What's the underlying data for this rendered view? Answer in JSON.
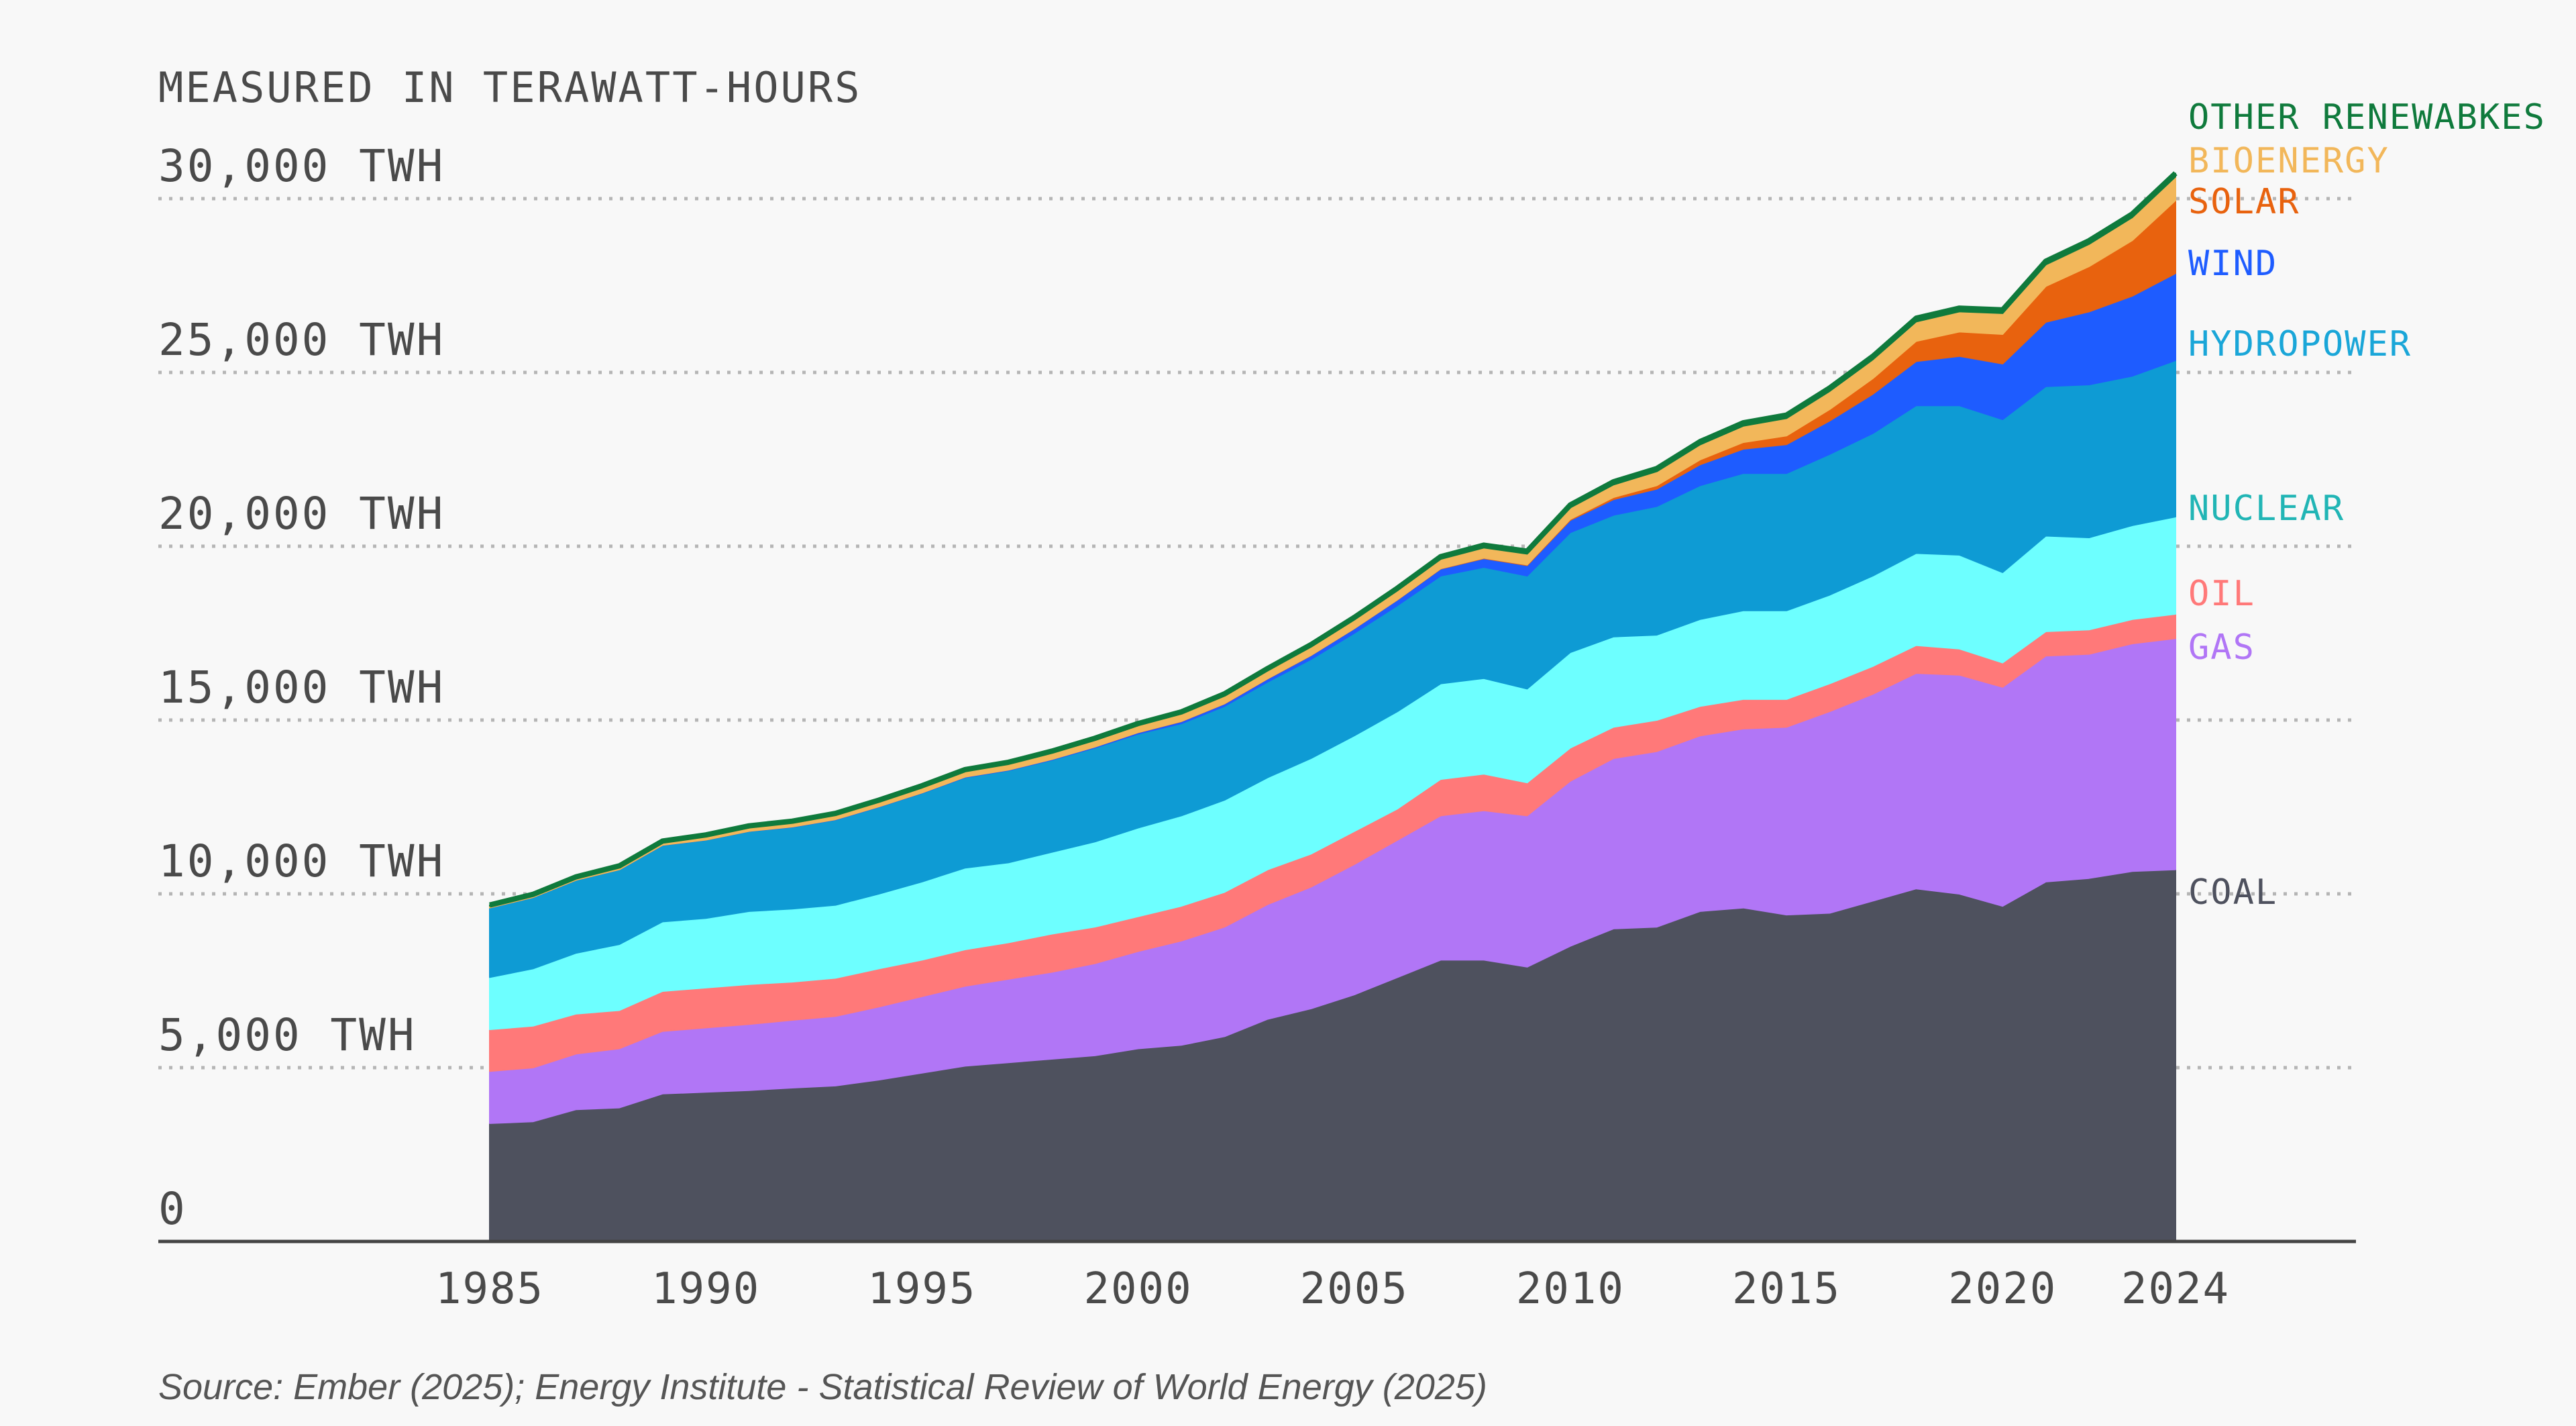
{
  "chart_data": {
    "type": "area",
    "stacked": true,
    "title": "",
    "subtitle": "MEASURED IN TERAWATT-HOURS",
    "xlabel": "",
    "ylabel": "",
    "ylim": [
      0,
      32000
    ],
    "y_ticks": [
      {
        "value": 0,
        "label": "0"
      },
      {
        "value": 5000,
        "label": "5,000  TWH"
      },
      {
        "value": 10000,
        "label": "10,000 TWH"
      },
      {
        "value": 15000,
        "label": "15,000 TWH"
      },
      {
        "value": 20000,
        "label": "20,000 TWH"
      },
      {
        "value": 25000,
        "label": "25,000 TWH"
      },
      {
        "value": 30000,
        "label": "30,000 TWH"
      }
    ],
    "x_ticks": [
      1985,
      1990,
      1995,
      2000,
      2005,
      2010,
      2015,
      2020,
      2024
    ],
    "grid": true,
    "legend": "inline labels at right end",
    "source": "Source: Ember (2025); Energy Institute - Statistical Review of World Energy (2025)",
    "x": [
      1985,
      1986,
      1987,
      1988,
      1989,
      1990,
      1991,
      1992,
      1993,
      1994,
      1995,
      1996,
      1997,
      1998,
      1999,
      2000,
      2001,
      2002,
      2003,
      2004,
      2005,
      2006,
      2007,
      2008,
      2009,
      2010,
      2011,
      2012,
      2013,
      2014,
      2015,
      2016,
      2017,
      2018,
      2019,
      2020,
      2021,
      2022,
      2023,
      2024
    ],
    "series": [
      {
        "name": "COAL",
        "color": "#4e515e",
        "label_color": "#4e515e",
        "values": [
          3400,
          3450,
          3800,
          3850,
          4250,
          4300,
          4350,
          4420,
          4480,
          4650,
          4850,
          5050,
          5150,
          5250,
          5350,
          5550,
          5650,
          5900,
          6400,
          6700,
          7100,
          7600,
          8100,
          8100,
          7900,
          8500,
          9000,
          9050,
          9500,
          9600,
          9400,
          9450,
          9800,
          10150,
          10000,
          9650,
          10350,
          10450,
          10650,
          10700
        ]
      },
      {
        "name": "GAS",
        "color": "#b176f6",
        "label_color": "#b176f6",
        "values": [
          1500,
          1550,
          1600,
          1700,
          1800,
          1850,
          1900,
          1950,
          2000,
          2100,
          2200,
          2300,
          2400,
          2500,
          2650,
          2800,
          3000,
          3150,
          3300,
          3500,
          3750,
          3950,
          4150,
          4300,
          4350,
          4750,
          4900,
          5050,
          5050,
          5150,
          5400,
          5800,
          5950,
          6200,
          6300,
          6300,
          6500,
          6450,
          6550,
          6650
        ]
      },
      {
        "name": "OIL",
        "color": "#ff7979",
        "label_color": "#ff7979",
        "values": [
          1200,
          1200,
          1150,
          1100,
          1150,
          1150,
          1150,
          1100,
          1100,
          1100,
          1050,
          1050,
          1050,
          1100,
          1050,
          1000,
          1000,
          1000,
          1000,
          950,
          950,
          900,
          1050,
          1050,
          950,
          950,
          900,
          900,
          850,
          850,
          800,
          800,
          800,
          800,
          750,
          700,
          700,
          700,
          700,
          700
        ]
      },
      {
        "name": "NUCLEAR",
        "color": "#6dffff",
        "label_color": "#21b5b5",
        "values": [
          1500,
          1650,
          1750,
          1900,
          2000,
          2000,
          2100,
          2100,
          2100,
          2150,
          2250,
          2350,
          2300,
          2350,
          2450,
          2550,
          2600,
          2650,
          2650,
          2750,
          2750,
          2800,
          2750,
          2750,
          2700,
          2750,
          2600,
          2450,
          2500,
          2550,
          2550,
          2550,
          2600,
          2650,
          2700,
          2600,
          2750,
          2650,
          2700,
          2800
        ]
      },
      {
        "name": "HYDROPOWER",
        "color": "#0e9bd4",
        "label_color": "#1aa6d8",
        "values": [
          2000,
          2050,
          2100,
          2150,
          2200,
          2250,
          2300,
          2350,
          2450,
          2500,
          2550,
          2600,
          2650,
          2650,
          2700,
          2700,
          2650,
          2700,
          2750,
          2850,
          2950,
          3050,
          3100,
          3200,
          3250,
          3450,
          3500,
          3700,
          3850,
          3950,
          3950,
          4050,
          4100,
          4250,
          4300,
          4400,
          4300,
          4400,
          4300,
          4500
        ]
      },
      {
        "name": "WIND",
        "color": "#1e5cff",
        "label_color": "#1e5cff",
        "values": [
          0,
          0,
          0,
          0,
          5,
          5,
          5,
          10,
          10,
          10,
          10,
          15,
          15,
          20,
          30,
          40,
          60,
          70,
          90,
          110,
          130,
          160,
          200,
          250,
          300,
          350,
          450,
          500,
          600,
          700,
          830,
          960,
          1130,
          1270,
          1420,
          1600,
          1850,
          2100,
          2300,
          2500
        ]
      },
      {
        "name": "SOLAR",
        "color": "#e8620e",
        "label_color": "#e8620e",
        "values": [
          0,
          0,
          0,
          0,
          0,
          0,
          0,
          0,
          0,
          0,
          0,
          0,
          0,
          0,
          0,
          5,
          5,
          5,
          5,
          5,
          5,
          5,
          10,
          15,
          20,
          30,
          60,
          100,
          140,
          190,
          250,
          330,
          450,
          580,
          700,
          850,
          1030,
          1300,
          1600,
          2100
        ]
      },
      {
        "name": "BIOENERGY",
        "color": "#f2b75a",
        "label_color": "#f2b75a",
        "values": [
          50,
          55,
          60,
          70,
          80,
          100,
          110,
          120,
          130,
          140,
          150,
          160,
          170,
          180,
          190,
          200,
          210,
          220,
          230,
          240,
          250,
          260,
          270,
          290,
          310,
          330,
          360,
          400,
          430,
          470,
          500,
          520,
          540,
          560,
          580,
          600,
          620,
          640,
          660,
          680
        ]
      },
      {
        "name": "OTHER RENEWABKES",
        "color": "#0f7a3c",
        "label_color": "#0f7a3c",
        "values": [
          30,
          30,
          30,
          35,
          35,
          40,
          40,
          40,
          45,
          45,
          50,
          50,
          50,
          55,
          55,
          55,
          60,
          60,
          60,
          65,
          65,
          70,
          70,
          75,
          80,
          80,
          85,
          85,
          90,
          90,
          95,
          95,
          95,
          100,
          100,
          100,
          100,
          100,
          100,
          100
        ]
      }
    ]
  }
}
